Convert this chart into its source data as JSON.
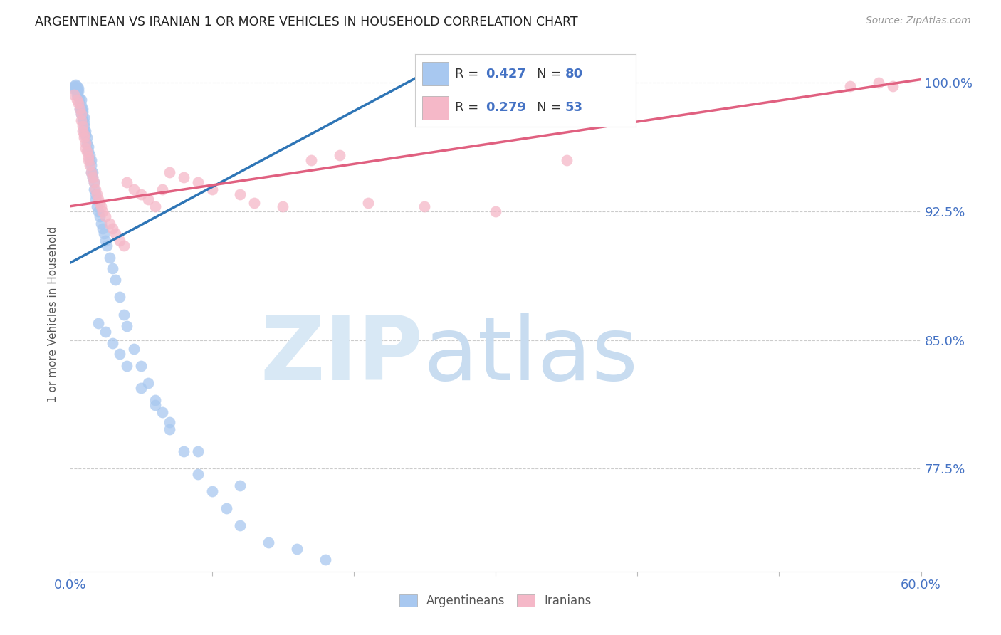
{
  "title": "ARGENTINEAN VS IRANIAN 1 OR MORE VEHICLES IN HOUSEHOLD CORRELATION CHART",
  "source": "Source: ZipAtlas.com",
  "ylabel": "1 or more Vehicles in Household",
  "xlim": [
    0.0,
    0.6
  ],
  "ylim": [
    0.715,
    1.015
  ],
  "yticks": [
    0.775,
    0.85,
    0.925,
    1.0
  ],
  "ytick_labels": [
    "77.5%",
    "85.0%",
    "92.5%",
    "100.0%"
  ],
  "xticks": [
    0.0,
    0.1,
    0.2,
    0.3,
    0.4,
    0.5,
    0.6
  ],
  "xtick_labels": [
    "0.0%",
    "",
    "",
    "",
    "",
    "",
    "60.0%"
  ],
  "blue_color": "#A8C8F0",
  "pink_color": "#F5B8C8",
  "blue_line_color": "#2E75B6",
  "pink_line_color": "#E06080",
  "blue_line_x": [
    0.0,
    0.26
  ],
  "blue_line_y": [
    0.895,
    1.01
  ],
  "pink_line_x": [
    0.0,
    0.6
  ],
  "pink_line_y": [
    0.928,
    1.002
  ],
  "arg_x": [
    0.002,
    0.003,
    0.004,
    0.004,
    0.005,
    0.005,
    0.005,
    0.006,
    0.006,
    0.006,
    0.007,
    0.007,
    0.007,
    0.008,
    0.008,
    0.008,
    0.008,
    0.009,
    0.009,
    0.009,
    0.009,
    0.01,
    0.01,
    0.01,
    0.01,
    0.011,
    0.011,
    0.012,
    0.012,
    0.013,
    0.013,
    0.014,
    0.014,
    0.015,
    0.015,
    0.015,
    0.016,
    0.016,
    0.017,
    0.017,
    0.018,
    0.018,
    0.019,
    0.02,
    0.021,
    0.022,
    0.023,
    0.024,
    0.025,
    0.026,
    0.028,
    0.03,
    0.032,
    0.035,
    0.038,
    0.04,
    0.045,
    0.05,
    0.055,
    0.06,
    0.065,
    0.07,
    0.08,
    0.09,
    0.1,
    0.11,
    0.12,
    0.14,
    0.16,
    0.18,
    0.02,
    0.025,
    0.03,
    0.035,
    0.04,
    0.05,
    0.06,
    0.07,
    0.09,
    0.12
  ],
  "arg_y": [
    0.997,
    0.998,
    0.997,
    0.999,
    0.998,
    0.996,
    0.993,
    0.997,
    0.995,
    0.992,
    0.99,
    0.988,
    0.985,
    0.99,
    0.987,
    0.985,
    0.982,
    0.985,
    0.983,
    0.98,
    0.978,
    0.98,
    0.977,
    0.975,
    0.972,
    0.972,
    0.97,
    0.968,
    0.965,
    0.963,
    0.96,
    0.958,
    0.955,
    0.955,
    0.952,
    0.948,
    0.948,
    0.945,
    0.942,
    0.938,
    0.935,
    0.932,
    0.928,
    0.925,
    0.922,
    0.918,
    0.915,
    0.912,
    0.908,
    0.905,
    0.898,
    0.892,
    0.885,
    0.875,
    0.865,
    0.858,
    0.845,
    0.835,
    0.825,
    0.815,
    0.808,
    0.798,
    0.785,
    0.772,
    0.762,
    0.752,
    0.742,
    0.732,
    0.728,
    0.722,
    0.86,
    0.855,
    0.848,
    0.842,
    0.835,
    0.822,
    0.812,
    0.802,
    0.785,
    0.765
  ],
  "iran_x": [
    0.003,
    0.005,
    0.006,
    0.007,
    0.008,
    0.008,
    0.009,
    0.009,
    0.01,
    0.01,
    0.011,
    0.011,
    0.012,
    0.013,
    0.013,
    0.014,
    0.015,
    0.016,
    0.017,
    0.018,
    0.019,
    0.02,
    0.021,
    0.022,
    0.023,
    0.025,
    0.028,
    0.03,
    0.032,
    0.035,
    0.038,
    0.04,
    0.045,
    0.05,
    0.055,
    0.06,
    0.065,
    0.07,
    0.08,
    0.09,
    0.1,
    0.12,
    0.13,
    0.15,
    0.17,
    0.19,
    0.21,
    0.25,
    0.3,
    0.35,
    0.55,
    0.57,
    0.58
  ],
  "iran_y": [
    0.993,
    0.99,
    0.988,
    0.985,
    0.982,
    0.978,
    0.975,
    0.972,
    0.97,
    0.968,
    0.965,
    0.962,
    0.96,
    0.957,
    0.955,
    0.952,
    0.948,
    0.945,
    0.942,
    0.938,
    0.935,
    0.932,
    0.93,
    0.928,
    0.925,
    0.922,
    0.918,
    0.915,
    0.912,
    0.908,
    0.905,
    0.942,
    0.938,
    0.935,
    0.932,
    0.928,
    0.938,
    0.948,
    0.945,
    0.942,
    0.938,
    0.935,
    0.93,
    0.928,
    0.955,
    0.958,
    0.93,
    0.928,
    0.925,
    0.955,
    0.998,
    1.0,
    0.998
  ]
}
